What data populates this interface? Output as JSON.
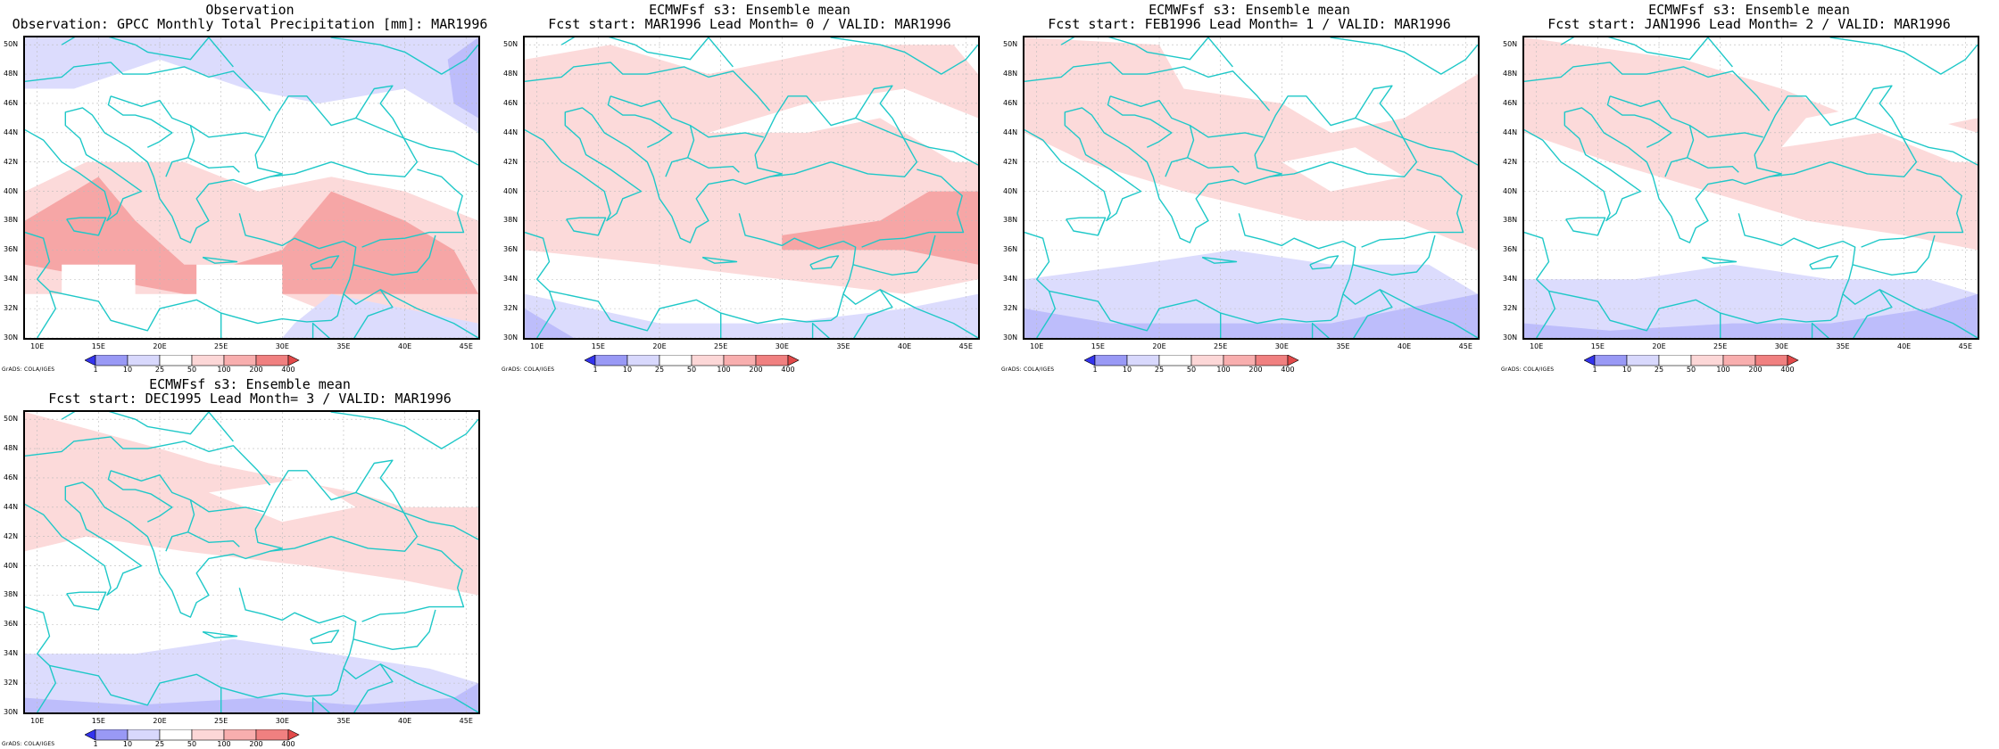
{
  "panels": [
    {
      "title1": "Observation",
      "title2": "Observation: GPCC Monthly Total Precipitation [mm]: MAR1996",
      "credit": "GrADS: COLA/IGES",
      "fill_level": 0
    },
    {
      "title1": "ECMWFsf s3: Ensemble mean",
      "title2": "Fcst start: MAR1996  Lead Month= 0 / VALID: MAR1996",
      "credit": "GrADS: COLA/IGES",
      "fill_level": 1
    },
    {
      "title1": "ECMWFsf s3: Ensemble mean",
      "title2": "Fcst start: FEB1996  Lead Month= 1 / VALID: MAR1996",
      "credit": "GrADS: COLA/IGES",
      "fill_level": 2
    },
    {
      "title1": "ECMWFsf s3: Ensemble mean",
      "title2": "Fcst start: JAN1996  Lead Month= 2 / VALID: MAR1996",
      "credit": "GrADS: COLA/IGES",
      "fill_level": 3
    },
    {
      "title1": "ECMWFsf s3: Ensemble mean",
      "title2": "Fcst start: DEC1995  Lead Month= 3 / VALID: MAR1996",
      "credit": "GrADS: COLA/IGES",
      "fill_level": 4
    }
  ],
  "map_axes": {
    "lat_ticks": [
      "30N",
      "32N",
      "34N",
      "36N",
      "38N",
      "40N",
      "42N",
      "44N",
      "46N",
      "48N",
      "50N"
    ],
    "lon_ticks": [
      "10E",
      "15E",
      "20E",
      "25E",
      "30E",
      "35E",
      "40E",
      "45E"
    ],
    "lat_range": [
      30,
      50.5
    ],
    "lon_range": [
      9,
      46
    ],
    "gridlines": true
  },
  "colorbar": {
    "labels": [
      "1",
      "10",
      "25",
      "50",
      "100",
      "200",
      "400"
    ],
    "colors": [
      "#3333ee",
      "#9999f5",
      "#d8d8fc",
      "#ffffff",
      "#fcd7d7",
      "#f8aeae",
      "#f08080",
      "#e24a4a"
    ]
  },
  "colors": {
    "coastline": "#1fc8c8",
    "grid": "#bbbbbb",
    "shade_blue_light": "#dcdcfd",
    "shade_blue_mid": "#bdbdfb",
    "shade_blue_dark": "#9c9cf7",
    "shade_red_light": "#fcdada",
    "shade_red_mid": "#f6a6a6",
    "shade_red_dark": "#ef8080"
  }
}
